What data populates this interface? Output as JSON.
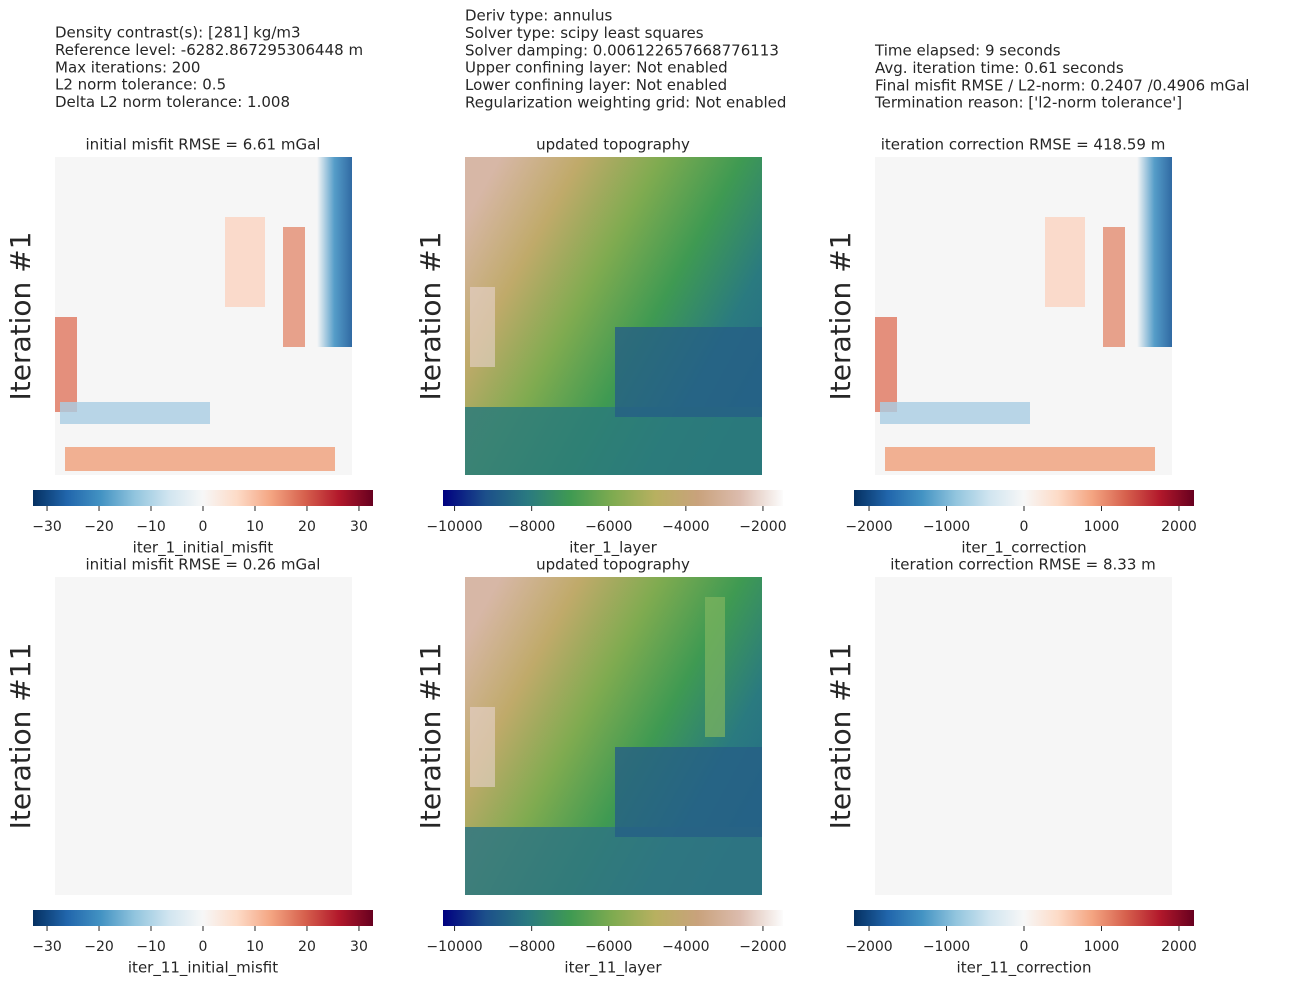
{
  "info_blocks": [
    [
      "Density contrast(s): [281] kg/m3",
      "Reference level: -6282.867295306448 m",
      "Max iterations: 200",
      "L2 norm tolerance: 0.5",
      "Delta L2 norm tolerance: 1.008"
    ],
    [
      "Deriv type: annulus",
      "Solver type: scipy least squares",
      "Solver damping: 0.006122657668776113",
      "Upper confining layer: Not enabled",
      "Lower confining layer: Not enabled",
      "Regularization weighting grid: Not enabled"
    ],
    [
      "Time elapsed: 9 seconds",
      "Avg. iteration time: 0.61 seconds",
      "Final misfit RMSE / L2-norm: 0.2407 /0.4906 mGal",
      "Termination reason: ['l2-norm tolerance']"
    ]
  ],
  "chart_data": [
    {
      "type": "heatmap",
      "title": "initial misfit RMSE = 6.61 mGal",
      "ylabel": "Iteration #1",
      "colorbar_label": "iter_1_initial_misfit",
      "cmap": [
        "#053061",
        "#2166ac",
        "#4393c3",
        "#92c5de",
        "#d1e5f0",
        "#f7f7f7",
        "#fddbc7",
        "#f4a582",
        "#d6604d",
        "#b2182b",
        "#67001f"
      ],
      "clim": [
        -32.7,
        32.7
      ],
      "cticks": [
        {
          "value": -30,
          "label": "−30"
        },
        {
          "value": -20,
          "label": "−20"
        },
        {
          "value": -10,
          "label": "−10"
        },
        0,
        10,
        20,
        30
      ]
    },
    {
      "type": "heatmap",
      "title": "updated topography",
      "ylabel": "Iteration #1",
      "colorbar_label": "iter_1_layer",
      "cmap": [
        "#000080",
        "#1c4f8a",
        "#2a7a80",
        "#3f9a52",
        "#7fab50",
        "#b8b060",
        "#c9a27c",
        "#dcbcae",
        "#fcfcfc"
      ],
      "clim": [
        -10300,
        -1480
      ],
      "cticks": [
        {
          "value": -10000,
          "label": "−10000"
        },
        {
          "value": -8000,
          "label": "−8000"
        },
        {
          "value": -6000,
          "label": "−6000"
        },
        {
          "value": -4000,
          "label": "−4000"
        },
        {
          "value": -2000,
          "label": "−2000"
        }
      ]
    },
    {
      "type": "heatmap",
      "title": "iteration correction RMSE = 418.59 m",
      "ylabel": "Iteration #1",
      "colorbar_label": "iter_1_correction",
      "cmap": [
        "#053061",
        "#2166ac",
        "#4393c3",
        "#92c5de",
        "#d1e5f0",
        "#f7f7f7",
        "#fddbc7",
        "#f4a582",
        "#d6604d",
        "#b2182b",
        "#67001f"
      ],
      "clim": [
        -2194,
        2194
      ],
      "cticks": [
        {
          "value": -2000,
          "label": "−2000"
        },
        {
          "value": -1000,
          "label": "−1000"
        },
        0,
        1000,
        2000
      ]
    },
    {
      "type": "heatmap",
      "title": "initial misfit RMSE = 0.26 mGal",
      "ylabel": "Iteration #11",
      "colorbar_label": "iter_11_initial_misfit",
      "cmap": [
        "#053061",
        "#2166ac",
        "#4393c3",
        "#92c5de",
        "#d1e5f0",
        "#f7f7f7",
        "#fddbc7",
        "#f4a582",
        "#d6604d",
        "#b2182b",
        "#67001f"
      ],
      "clim": [
        -32.7,
        32.7
      ],
      "cticks": [
        {
          "value": -30,
          "label": "−30"
        },
        {
          "value": -20,
          "label": "−20"
        },
        {
          "value": -10,
          "label": "−10"
        },
        0,
        10,
        20,
        30
      ]
    },
    {
      "type": "heatmap",
      "title": "updated topography",
      "ylabel": "Iteration #11",
      "colorbar_label": "iter_11_layer",
      "cmap": [
        "#000080",
        "#1c4f8a",
        "#2a7a80",
        "#3f9a52",
        "#7fab50",
        "#b8b060",
        "#c9a27c",
        "#dcbcae",
        "#fcfcfc"
      ],
      "clim": [
        -10300,
        -1480
      ],
      "cticks": [
        {
          "value": -10000,
          "label": "−10000"
        },
        {
          "value": -8000,
          "label": "−8000"
        },
        {
          "value": -6000,
          "label": "−6000"
        },
        {
          "value": -4000,
          "label": "−4000"
        },
        {
          "value": -2000,
          "label": "−2000"
        }
      ]
    },
    {
      "type": "heatmap",
      "title": "iteration correction RMSE = 8.33 m",
      "ylabel": "Iteration #11",
      "colorbar_label": "iter_11_correction",
      "cmap": [
        "#053061",
        "#2166ac",
        "#4393c3",
        "#92c5de",
        "#d1e5f0",
        "#f7f7f7",
        "#fddbc7",
        "#f4a582",
        "#d6604d",
        "#b2182b",
        "#67001f"
      ],
      "clim": [
        -2194,
        2194
      ],
      "cticks": [
        {
          "value": -2000,
          "label": "−2000"
        },
        {
          "value": -1000,
          "label": "−1000"
        },
        0,
        1000,
        2000
      ]
    }
  ]
}
